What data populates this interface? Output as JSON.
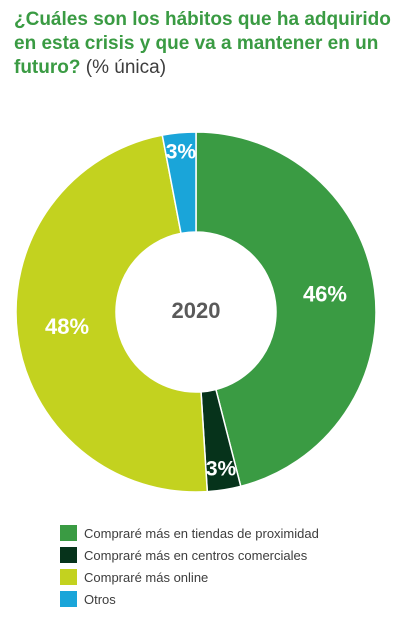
{
  "header": {
    "title": "¿Cuáles son los hábitos que ha adquirido en esta crisis y que va a mantener en un futuro?",
    "subtitle": "(% única)"
  },
  "chart_data": {
    "type": "pie",
    "variant": "donut",
    "center_label": "2020",
    "unit": "%",
    "slices": [
      {
        "label": "Compraré más en tiendas de proximidad",
        "value": 46,
        "display": "46%",
        "color": "#3a9b43",
        "label_color": "#ffffff"
      },
      {
        "label": "Compraré más en centros comerciales",
        "value": 3,
        "display": "3%",
        "color": "#06331b",
        "label_color": "#ffffff"
      },
      {
        "label": "Compraré más online",
        "value": 48,
        "display": "48%",
        "color": "#c3d21f",
        "label_color": "#ffffff"
      },
      {
        "label": "Otros",
        "value": 3,
        "display": "3%",
        "color": "#1aa5d9",
        "label_color": "#ffffff"
      }
    ],
    "center_label_color": "#5a5a5a",
    "legend_position": "bottom-left"
  }
}
